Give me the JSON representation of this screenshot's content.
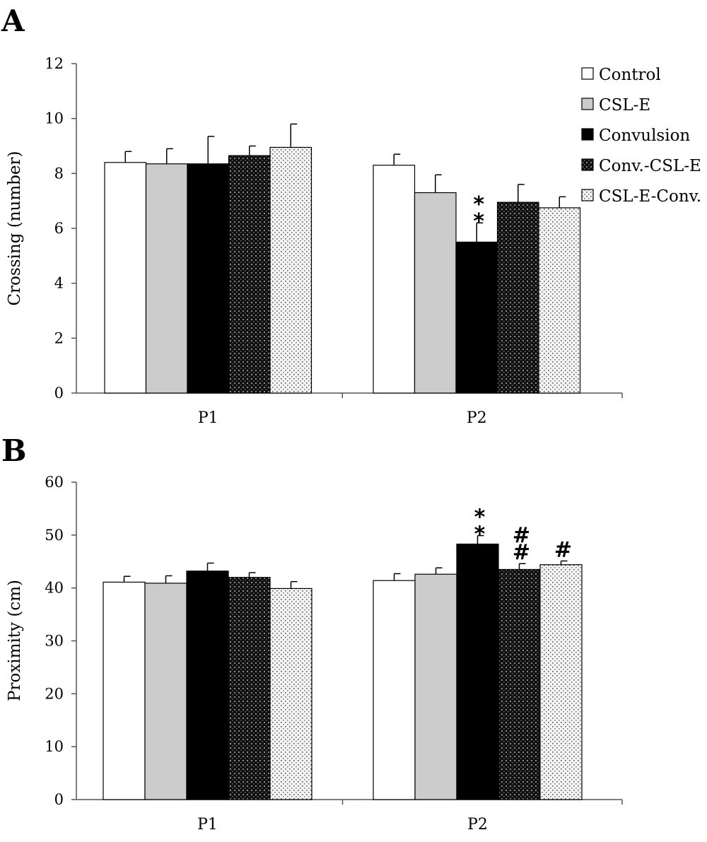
{
  "chart_data": [
    {
      "type": "bar",
      "panel_label": "A",
      "ylabel": "Crossing (number)",
      "xlabel": "",
      "ylim": [
        0,
        12
      ],
      "yticks": [
        "0",
        "2",
        "4",
        "6",
        "8",
        "10",
        "12"
      ],
      "categories": [
        "P1",
        "P2"
      ],
      "grid": false,
      "legend": "top-right",
      "series": [
        {
          "name": "Control",
          "values": [
            8.4,
            8.3
          ],
          "errors": [
            0.4,
            0.4
          ],
          "pattern": "white"
        },
        {
          "name": "CSL-E",
          "values": [
            8.35,
            7.3
          ],
          "errors": [
            0.55,
            0.65
          ],
          "pattern": "gray"
        },
        {
          "name": "Convulsion",
          "values": [
            8.35,
            5.5
          ],
          "errors": [
            1.0,
            0.7
          ],
          "pattern": "black"
        },
        {
          "name": "Conv.-CSL-E",
          "values": [
            8.65,
            6.95
          ],
          "errors": [
            0.35,
            0.65
          ],
          "pattern": "dark-dotted"
        },
        {
          "name": "CSL-E-Conv.",
          "values": [
            8.95,
            6.75
          ],
          "errors": [
            0.85,
            0.4
          ],
          "pattern": "light-dotted"
        }
      ],
      "annotations": [
        {
          "category": "P2",
          "series": "Convulsion",
          "text": [
            "*",
            "*"
          ]
        }
      ]
    },
    {
      "type": "bar",
      "panel_label": "B",
      "ylabel": "Proximity (cm)",
      "xlabel": "",
      "ylim": [
        0,
        60
      ],
      "yticks": [
        "0",
        "10",
        "20",
        "30",
        "40",
        "50",
        "60"
      ],
      "categories": [
        "P1",
        "P2"
      ],
      "grid": false,
      "series": [
        {
          "name": "Control",
          "values": [
            41.1,
            41.4
          ],
          "errors": [
            1.1,
            1.3
          ],
          "pattern": "white"
        },
        {
          "name": "CSL-E",
          "values": [
            40.9,
            42.6
          ],
          "errors": [
            1.4,
            1.2
          ],
          "pattern": "gray"
        },
        {
          "name": "Convulsion",
          "values": [
            43.2,
            48.3
          ],
          "errors": [
            1.5,
            1.6
          ],
          "pattern": "black"
        },
        {
          "name": "Conv.-CSL-E",
          "values": [
            42.0,
            43.5
          ],
          "errors": [
            0.9,
            1.1
          ],
          "pattern": "dark-dotted"
        },
        {
          "name": "CSL-E-Conv.",
          "values": [
            39.9,
            44.4
          ],
          "errors": [
            1.3,
            0.7
          ],
          "pattern": "light-dotted"
        }
      ],
      "annotations": [
        {
          "category": "P2",
          "series": "Convulsion",
          "text": [
            "*",
            "*"
          ]
        },
        {
          "category": "P2",
          "series": "Conv.-CSL-E",
          "text": [
            "#",
            "#"
          ]
        },
        {
          "category": "P2",
          "series": "CSL-E-Conv.",
          "text": [
            "#"
          ]
        }
      ]
    }
  ]
}
